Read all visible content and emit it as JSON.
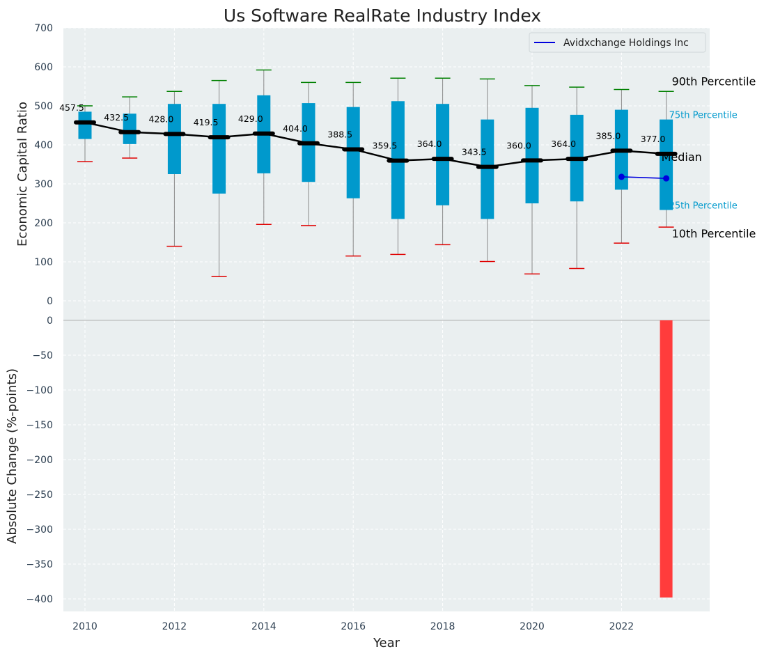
{
  "chart_data": [
    {
      "type": "box",
      "title": "Us Software RealRate Industry Index",
      "ylabel": "Economic Capital Ratio",
      "ylim": [
        -50,
        700
      ],
      "yticks": [
        0,
        100,
        200,
        300,
        400,
        500,
        600,
        700
      ],
      "grid": true,
      "legend_position": "top-right",
      "categories": [
        2010,
        2011,
        2012,
        2013,
        2014,
        2015,
        2016,
        2017,
        2018,
        2019,
        2020,
        2021,
        2022,
        2023
      ],
      "p10": [
        357,
        366,
        140,
        62,
        196,
        193,
        115,
        119,
        144,
        101,
        69,
        83,
        148,
        189
      ],
      "q1": [
        415,
        402,
        325,
        275,
        327,
        305,
        263,
        210,
        245,
        210,
        250,
        255,
        285,
        233
      ],
      "median": [
        457.5,
        432.5,
        428.0,
        419.5,
        429.0,
        404.0,
        388.5,
        359.5,
        364.0,
        343.5,
        360.0,
        364.0,
        385.0,
        377.0
      ],
      "q3": [
        485,
        480,
        505,
        505,
        527,
        507,
        497,
        512,
        505,
        465,
        495,
        477,
        490,
        465
      ],
      "p90": [
        500,
        523,
        537,
        565,
        592,
        560,
        560,
        571,
        571,
        569,
        552,
        548,
        542,
        537
      ],
      "median_labels": [
        "457.5",
        "432.5",
        "428.0",
        "419.5",
        "429.0",
        "404.0",
        "388.5",
        "359.5",
        "364.0",
        "343.5",
        "360.0",
        "364.0",
        "385.0",
        "377.0"
      ],
      "series": [
        {
          "name": "Avidxchange Holdings Inc",
          "x": [
            2022,
            2023
          ],
          "values": [
            318,
            314
          ]
        }
      ],
      "annotations": {
        "p90": "90th Percentile",
        "q3": "75th Percentile",
        "median": "Median",
        "q1": "25th Percentile",
        "p10": "10th Percentile"
      }
    },
    {
      "type": "bar",
      "ylabel": "Absolute Change (%-points)",
      "xlabel": "Year",
      "ylim": [
        -420,
        0
      ],
      "yticks": [
        0,
        -50,
        -100,
        -150,
        -200,
        -250,
        -300,
        -350,
        -400
      ],
      "ytick_labels": [
        "0",
        "−50",
        "−100",
        "−150",
        "−200",
        "−250",
        "−300",
        "−350",
        "−400"
      ],
      "xticks": [
        2010,
        2012,
        2014,
        2016,
        2018,
        2020,
        2022
      ],
      "grid": true,
      "x": [
        2023
      ],
      "values": [
        -398
      ]
    }
  ],
  "colors": {
    "box": "#0099cc",
    "whisker": "#888888",
    "p90_cap": "#008000",
    "p10_cap": "#e00000",
    "median": "#000000",
    "company": "#0000dd",
    "bar_negative": "#ff3c3c",
    "plot_bg": "#eaeff0",
    "grid": "#ffffff"
  }
}
